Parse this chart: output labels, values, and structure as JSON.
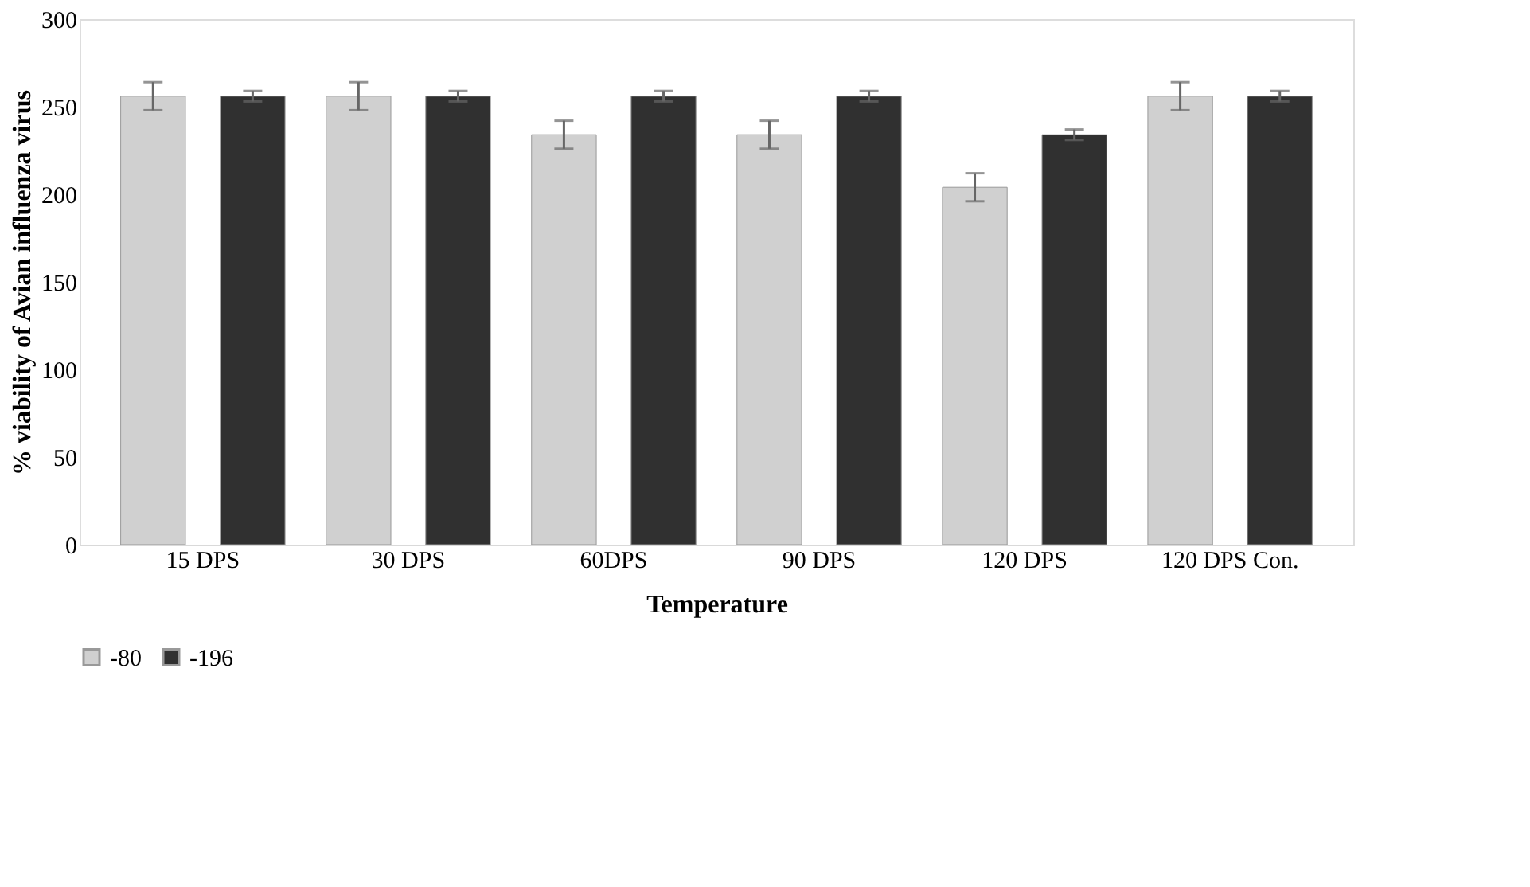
{
  "chart_data": {
    "type": "bar",
    "xlabel": "Temperature",
    "ylabel": "% viability of Avian influenza virus",
    "categories": [
      "15 DPS",
      "30 DPS",
      "60DPS",
      "90 DPS",
      "120 DPS",
      "120 DPS Con."
    ],
    "series": [
      {
        "name": "-80",
        "color": "#d0d0d0",
        "values": [
          256,
          256,
          234,
          234,
          204,
          256
        ],
        "errors": [
          8,
          8,
          8,
          8,
          8,
          8
        ]
      },
      {
        "name": "-196",
        "color": "#303030",
        "values": [
          256,
          256,
          256,
          256,
          234,
          256
        ],
        "errors": [
          3,
          3,
          3,
          3,
          3,
          3
        ]
      }
    ],
    "ylim": [
      0,
      300
    ],
    "yticks": [
      0,
      50,
      100,
      150,
      200,
      250,
      300
    ],
    "grid": false,
    "legend": "bottom"
  }
}
